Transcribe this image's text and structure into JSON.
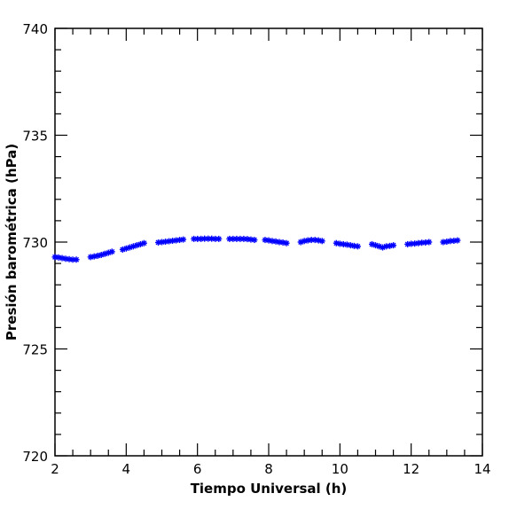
{
  "chart_data": {
    "type": "scatter",
    "xlabel": "Tiempo Universal (h)",
    "ylabel": "Presión barométrica (hPa)",
    "xlim": [
      2,
      14
    ],
    "ylim": [
      720,
      740
    ],
    "xticks": [
      2,
      4,
      6,
      8,
      10,
      12,
      14
    ],
    "yticks": [
      720,
      725,
      730,
      735,
      740
    ],
    "x_minor_step": 0.5,
    "y_minor_step": 1,
    "grid": false,
    "marker": "asterisk",
    "color": "#0000ff",
    "series": [
      {
        "x": [
          2.0,
          2.1,
          2.2,
          2.3,
          2.4,
          2.5,
          2.6,
          3.0,
          3.1,
          3.2,
          3.3,
          3.4,
          3.5,
          3.6,
          3.9,
          4.0,
          4.1,
          4.2,
          4.3,
          4.4,
          4.5,
          4.9,
          5.0,
          5.1,
          5.2,
          5.3,
          5.4,
          5.5,
          5.6,
          5.9,
          6.0,
          6.1,
          6.2,
          6.3,
          6.4,
          6.5,
          6.6,
          6.9,
          7.0,
          7.1,
          7.2,
          7.3,
          7.4,
          7.5,
          7.6,
          7.9,
          8.0,
          8.1,
          8.2,
          8.3,
          8.4,
          8.5,
          8.9,
          9.0,
          9.1,
          9.2,
          9.3,
          9.4,
          9.5,
          9.9,
          10.0,
          10.1,
          10.2,
          10.3,
          10.4,
          10.5,
          10.9,
          11.0,
          11.1,
          11.2,
          11.3,
          11.4,
          11.5,
          11.9,
          12.0,
          12.1,
          12.2,
          12.3,
          12.4,
          12.5,
          12.9,
          13.0,
          13.1,
          13.2,
          13.3
        ],
        "y": [
          729.3,
          729.28,
          729.25,
          729.22,
          729.2,
          729.18,
          729.18,
          729.3,
          729.33,
          729.36,
          729.4,
          729.45,
          729.5,
          729.55,
          729.65,
          729.7,
          729.75,
          729.8,
          729.85,
          729.9,
          729.95,
          729.98,
          730.0,
          730.02,
          730.04,
          730.06,
          730.08,
          730.1,
          730.12,
          730.15,
          730.15,
          730.15,
          730.16,
          730.16,
          730.16,
          730.15,
          730.15,
          730.15,
          730.15,
          730.15,
          730.15,
          730.15,
          730.14,
          730.12,
          730.1,
          730.1,
          730.08,
          730.05,
          730.03,
          730.0,
          729.98,
          729.95,
          730.0,
          730.05,
          730.08,
          730.1,
          730.1,
          730.08,
          730.05,
          729.95,
          729.92,
          729.9,
          729.88,
          729.85,
          729.82,
          729.8,
          729.9,
          729.85,
          729.8,
          729.75,
          729.8,
          729.82,
          729.85,
          729.9,
          729.92,
          729.93,
          729.95,
          729.97,
          729.98,
          730.0,
          730.0,
          730.02,
          730.05,
          730.06,
          730.08
        ]
      }
    ]
  }
}
